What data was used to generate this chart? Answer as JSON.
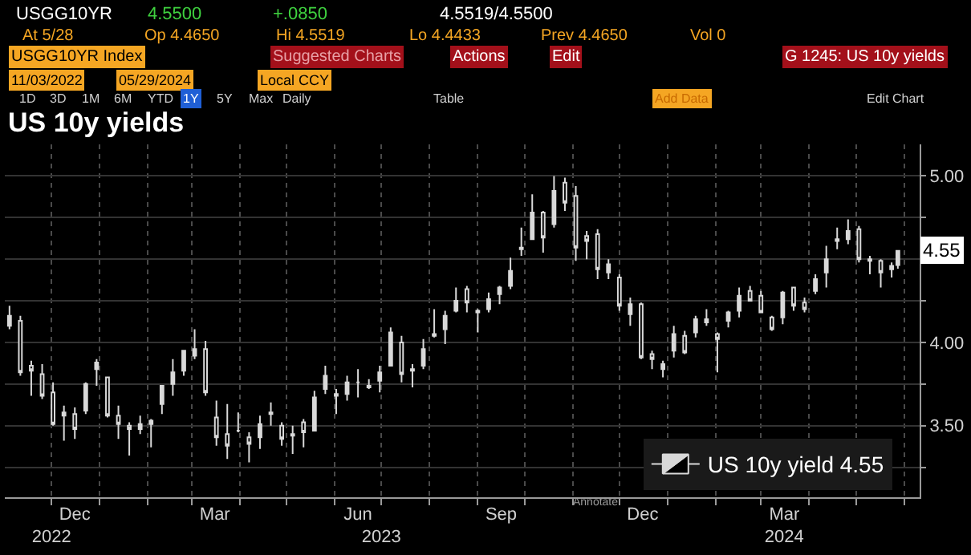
{
  "chart_data": {
    "type": "candlestick",
    "title": "US 10y yields",
    "annotations": [
      "USGG10YR",
      "4.5500",
      "+.0850",
      "4.5519/4.5500",
      "At 5/28",
      "Op 4.4650",
      "Hi 4.5519",
      "Lo 4.4433",
      "Prev 4.4650",
      "Vol 0",
      "USGG10YR Index",
      "Suggested Charts",
      "Actions",
      "Edit",
      "G 1245: US 10y yields",
      "11/03/2022",
      "05/29/2024",
      "Local CCY",
      "1D",
      "3D",
      "1M",
      "6M",
      "YTD",
      "1Y",
      "5Y",
      "Max",
      "Daily",
      "Table",
      "Add Data",
      "Edit Chart",
      "Annotate",
      {
        "text": "4.55",
        "x": "2024-05-28",
        "y": 4.55
      }
    ],
    "x": [
      "2022-11-04",
      "2022-11-11",
      "2022-11-18",
      "2022-11-25",
      "2022-12-02",
      "2022-12-09",
      "2022-12-16",
      "2022-12-23",
      "2022-12-30",
      "2023-01-06",
      "2023-01-13",
      "2023-01-20",
      "2023-01-27",
      "2023-02-03",
      "2023-02-10",
      "2023-02-17",
      "2023-02-24",
      "2023-03-03",
      "2023-03-10",
      "2023-03-17",
      "2023-03-24",
      "2023-03-31",
      "2023-04-07",
      "2023-04-14",
      "2023-04-21",
      "2023-04-28",
      "2023-05-05",
      "2023-05-12",
      "2023-05-19",
      "2023-05-26",
      "2023-06-02",
      "2023-06-09",
      "2023-06-16",
      "2023-06-23",
      "2023-06-30",
      "2023-07-07",
      "2023-07-14",
      "2023-07-21",
      "2023-07-28",
      "2023-08-04",
      "2023-08-11",
      "2023-08-18",
      "2023-08-25",
      "2023-09-01",
      "2023-09-08",
      "2023-09-15",
      "2023-09-22",
      "2023-09-29",
      "2023-10-06",
      "2023-10-13",
      "2023-10-20",
      "2023-10-27",
      "2023-11-03",
      "2023-11-10",
      "2023-11-17",
      "2023-11-24",
      "2023-12-01",
      "2023-12-08",
      "2023-12-15",
      "2023-12-22",
      "2023-12-29",
      "2024-01-05",
      "2024-01-12",
      "2024-01-19",
      "2024-01-26",
      "2024-02-02",
      "2024-02-09",
      "2024-02-16",
      "2024-02-23",
      "2024-03-01",
      "2024-03-08",
      "2024-03-15",
      "2024-03-22",
      "2024-03-29",
      "2024-04-05",
      "2024-04-12",
      "2024-04-19",
      "2024-04-26",
      "2024-05-03",
      "2024-05-10",
      "2024-05-17",
      "2024-05-24",
      "2024-05-28"
    ],
    "series": [
      {
        "name": "US 10y yield 4.55",
        "color": "#d9d9d9",
        "ohlc": [
          [
            4.1,
            4.22,
            4.08,
            4.16
          ],
          [
            4.13,
            4.16,
            3.8,
            3.82
          ],
          [
            3.86,
            3.89,
            3.68,
            3.83
          ],
          [
            3.81,
            3.87,
            3.66,
            3.68
          ],
          [
            3.7,
            3.76,
            3.5,
            3.51
          ],
          [
            3.56,
            3.62,
            3.41,
            3.58
          ],
          [
            3.57,
            3.61,
            3.42,
            3.48
          ],
          [
            3.59,
            3.76,
            3.57,
            3.75
          ],
          [
            3.84,
            3.9,
            3.74,
            3.88
          ],
          [
            3.79,
            3.79,
            3.55,
            3.56
          ],
          [
            3.56,
            3.62,
            3.42,
            3.51
          ],
          [
            3.5,
            3.52,
            3.32,
            3.48
          ],
          [
            3.48,
            3.56,
            3.45,
            3.51
          ],
          [
            3.51,
            3.54,
            3.37,
            3.53
          ],
          [
            3.63,
            3.74,
            3.57,
            3.74
          ],
          [
            3.75,
            3.9,
            3.68,
            3.82
          ],
          [
            3.83,
            3.95,
            3.8,
            3.95
          ],
          [
            3.92,
            4.08,
            3.9,
            3.96
          ],
          [
            3.96,
            4.01,
            3.68,
            3.7
          ],
          [
            3.55,
            3.65,
            3.38,
            3.43
          ],
          [
            3.45,
            3.63,
            3.3,
            3.38
          ],
          [
            3.47,
            3.58,
            3.46,
            3.47
          ],
          [
            3.43,
            3.46,
            3.28,
            3.39
          ],
          [
            3.43,
            3.56,
            3.36,
            3.51
          ],
          [
            3.58,
            3.64,
            3.5,
            3.57
          ],
          [
            3.5,
            3.52,
            3.38,
            3.42
          ],
          [
            3.44,
            3.5,
            3.33,
            3.45
          ],
          [
            3.52,
            3.54,
            3.37,
            3.46
          ],
          [
            3.47,
            3.71,
            3.47,
            3.67
          ],
          [
            3.72,
            3.86,
            3.69,
            3.8
          ],
          [
            3.68,
            3.72,
            3.57,
            3.69
          ],
          [
            3.69,
            3.8,
            3.65,
            3.76
          ],
          [
            3.76,
            3.84,
            3.67,
            3.76
          ],
          [
            3.73,
            3.78,
            3.72,
            3.74
          ],
          [
            3.77,
            3.86,
            3.7,
            3.82
          ],
          [
            3.86,
            4.09,
            3.86,
            4.06
          ],
          [
            4.0,
            4.04,
            3.76,
            3.81
          ],
          [
            3.83,
            3.87,
            3.73,
            3.84
          ],
          [
            3.86,
            4.02,
            3.84,
            3.96
          ],
          [
            4.05,
            4.2,
            4.03,
            4.04
          ],
          [
            4.08,
            4.19,
            3.99,
            4.16
          ],
          [
            4.19,
            4.33,
            4.18,
            4.25
          ],
          [
            4.32,
            4.34,
            4.18,
            4.24
          ],
          [
            4.19,
            4.2,
            4.06,
            4.18
          ],
          [
            4.2,
            4.3,
            4.18,
            4.26
          ],
          [
            4.29,
            4.34,
            4.23,
            4.33
          ],
          [
            4.34,
            4.51,
            4.32,
            4.43
          ],
          [
            4.56,
            4.69,
            4.52,
            4.57
          ],
          [
            4.62,
            4.89,
            4.62,
            4.78
          ],
          [
            4.78,
            4.79,
            4.54,
            4.63
          ],
          [
            4.71,
            5.0,
            4.69,
            4.91
          ],
          [
            4.96,
            4.99,
            4.79,
            4.84
          ],
          [
            4.88,
            4.94,
            4.49,
            4.57
          ],
          [
            4.64,
            4.67,
            4.5,
            4.61
          ],
          [
            4.65,
            4.68,
            4.38,
            4.44
          ],
          [
            4.42,
            4.5,
            4.38,
            4.47
          ],
          [
            4.39,
            4.41,
            4.19,
            4.22
          ],
          [
            4.17,
            4.27,
            4.1,
            4.23
          ],
          [
            4.23,
            4.24,
            3.9,
            3.91
          ],
          [
            3.93,
            3.95,
            3.84,
            3.9
          ],
          [
            3.84,
            3.89,
            3.79,
            3.87
          ],
          [
            3.95,
            4.1,
            3.91,
            4.05
          ],
          [
            4.04,
            4.07,
            3.93,
            3.94
          ],
          [
            4.06,
            4.16,
            4.03,
            4.14
          ],
          [
            4.12,
            4.2,
            4.1,
            4.14
          ],
          [
            4.05,
            4.06,
            3.82,
            4.02
          ],
          [
            4.13,
            4.19,
            4.09,
            4.18
          ],
          [
            4.19,
            4.33,
            4.15,
            4.28
          ],
          [
            4.31,
            4.34,
            4.25,
            4.25
          ],
          [
            4.28,
            4.31,
            4.18,
            4.18
          ],
          [
            4.15,
            4.16,
            4.07,
            4.08
          ],
          [
            4.15,
            4.31,
            4.11,
            4.3
          ],
          [
            4.33,
            4.33,
            4.19,
            4.22
          ],
          [
            4.24,
            4.27,
            4.18,
            4.2
          ],
          [
            4.31,
            4.41,
            4.29,
            4.38
          ],
          [
            4.42,
            4.58,
            4.33,
            4.5
          ],
          [
            4.61,
            4.69,
            4.56,
            4.62
          ],
          [
            4.62,
            4.74,
            4.59,
            4.67
          ],
          [
            4.68,
            4.7,
            4.48,
            4.5
          ],
          [
            4.49,
            4.52,
            4.41,
            4.5
          ],
          [
            4.49,
            4.5,
            4.33,
            4.42
          ],
          [
            4.44,
            4.48,
            4.39,
            4.46
          ],
          [
            4.465,
            4.5519,
            4.4433,
            4.55
          ]
        ]
      }
    ],
    "xlim": [
      "2022-11-01",
      "2024-06-11"
    ],
    "xticks": [
      {
        "value": "2022-12-01",
        "label": null
      },
      {
        "value": "2023-01-01",
        "label": null
      },
      {
        "value": "2023-02-01",
        "label": null
      },
      {
        "value": "2023-03-01",
        "label": null
      },
      {
        "value": "2023-04-01",
        "label": null
      },
      {
        "value": "2023-05-01",
        "label": null
      },
      {
        "value": "2023-06-01",
        "label": null
      },
      {
        "value": "2023-07-01",
        "label": null
      },
      {
        "value": "2023-08-01",
        "label": null
      },
      {
        "value": "2023-09-01",
        "label": null
      },
      {
        "value": "2023-10-01",
        "label": null
      },
      {
        "value": "2023-11-01",
        "label": null
      },
      {
        "value": "2023-12-01",
        "label": null
      },
      {
        "value": "2024-01-01",
        "label": null
      },
      {
        "value": "2024-02-01",
        "label": null
      },
      {
        "value": "2024-03-01",
        "label": null
      },
      {
        "value": "2024-04-01",
        "label": null
      },
      {
        "value": "2024-05-01",
        "label": null
      },
      {
        "value": "2024-06-01",
        "label": null
      },
      {
        "value": "2022-12-16",
        "label": "Dec"
      },
      {
        "value": "2023-03-16",
        "label": "Mar"
      },
      {
        "value": "2023-06-16",
        "label": "Jun"
      },
      {
        "value": "2023-09-16",
        "label": "Sep"
      },
      {
        "value": "2023-12-16",
        "label": "Dec"
      },
      {
        "value": "2024-03-16",
        "label": "Mar"
      }
    ],
    "x2lim": [
      "2022-11-01",
      "2024-06-11"
    ],
    "x2ticks": [
      {
        "value": "2022-12-01",
        "label": "2022"
      },
      {
        "value": "2023-07-01",
        "label": "2023"
      },
      {
        "value": "2024-03-16",
        "label": "2024"
      }
    ],
    "ylim": [
      3.07,
      5.19
    ],
    "yticks": [
      {
        "value": 3.25,
        "label": null
      },
      {
        "value": 3.5,
        "label": "3.50"
      },
      {
        "value": 3.75,
        "label": null
      },
      {
        "value": 4.0,
        "label": "4.00"
      },
      {
        "value": 4.25,
        "label": null
      },
      {
        "value": 4.5,
        "label": null
      },
      {
        "value": 4.75,
        "label": null
      },
      {
        "value": 5.0,
        "label": "5.00"
      }
    ],
    "grid": true,
    "legend": "bottom right"
  }
}
